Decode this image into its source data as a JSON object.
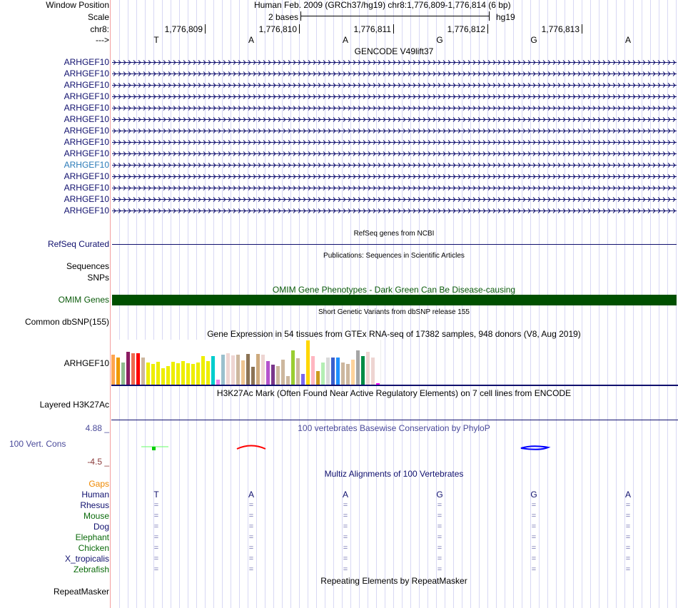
{
  "labels": {
    "window_position": "Window Position",
    "scale": "Scale",
    "chr": "chr8:",
    "strand": "--->",
    "refseq": "RefSeq Curated",
    "sequences": "Sequences",
    "snps": "SNPs",
    "omim": "OMIM Genes",
    "dbsnp": "Common dbSNP(155)",
    "gtex_gene": "ARHGEF10",
    "h3k27ac": "Layered H3K27Ac",
    "cons": "100 Vert. Cons",
    "cons_max": "4.88 _",
    "cons_min": "-4.5 _",
    "gaps": "Gaps",
    "repeatmasker": "RepeatMasker"
  },
  "header": {
    "position": "Human Feb. 2009 (GRCh37/hg19)   chr8:1,776,809-1,776,814 (6 bp)",
    "scale_text": "2 bases",
    "assembly": "hg19"
  },
  "ruler": [
    "1,776,809",
    "1,776,810",
    "1,776,811",
    "1,776,812",
    "1,776,813"
  ],
  "bases": [
    "T",
    "A",
    "A",
    "G",
    "G",
    "A"
  ],
  "titles": {
    "gencode": "GENCODE V49lift37",
    "refseq": "RefSeq genes from NCBI",
    "pubs": "Publications: Sequences in Scientific Articles",
    "omim": "OMIM Gene Phenotypes - Dark Green Can Be Disease-causing",
    "dbsnp": "Short Genetic Variants from dbSNP release 155",
    "gtex": "Gene Expression in 54 tissues from GTEx RNA-seq of 17382 samples, 948 donors (V8, Aug 2019)",
    "h3k27ac": "H3K27Ac Mark (Often Found Near Active Regulatory Elements) on 7 cell lines from ENCODE",
    "phylop": "100 vertebrates Basewise Conservation by PhyloP",
    "multiz": "Multiz Alignments of 100 Vertebrates",
    "rmsk": "Repeating Elements by RepeatMasker"
  },
  "gencode_rows": [
    "ARHGEF10",
    "ARHGEF10",
    "ARHGEF10",
    "ARHGEF10",
    "ARHGEF10",
    "ARHGEF10",
    "ARHGEF10",
    "ARHGEF10",
    "ARHGEF10",
    "ARHGEF10",
    "ARHGEF10",
    "ARHGEF10",
    "ARHGEF10",
    "ARHGEF10"
  ],
  "gencode_highlight_index": 9,
  "species": [
    {
      "name": "Human",
      "color": "#10106e"
    },
    {
      "name": "Rhesus",
      "color": "#10106e"
    },
    {
      "name": "Mouse",
      "color": "#0a6a0a"
    },
    {
      "name": "Dog",
      "color": "#10106e"
    },
    {
      "name": "Elephant",
      "color": "#0a6a0a"
    },
    {
      "name": "Chicken",
      "color": "#0a6a0a"
    },
    {
      "name": "X_tropicalis",
      "color": "#10106e"
    },
    {
      "name": "Zebrafish",
      "color": "#0a6a0a"
    }
  ],
  "align_symbol": "=",
  "gtex": {
    "values": [
      130,
      118,
      94,
      142,
      136,
      136,
      118,
      94,
      88,
      97,
      70,
      79,
      97,
      91,
      100,
      91,
      88,
      94,
      124,
      100,
      124,
      22,
      130,
      136,
      127,
      130,
      103,
      133,
      76,
      133,
      130,
      100,
      85,
      79,
      106,
      37,
      148,
      112,
      46,
      190,
      124,
      58,
      94,
      115,
      115,
      115,
      94,
      88,
      106,
      148,
      124,
      142,
      115,
      7
    ],
    "colors": [
      "#ffa54f",
      "#ee9a00",
      "#8fbc8f",
      "#8b1c62",
      "#ee6a50",
      "#ff0000",
      "#cdb79e",
      "#eeee00",
      "#eeee00",
      "#eeee00",
      "#eeee00",
      "#eeee00",
      "#eeee00",
      "#eeee00",
      "#eeee00",
      "#eeee00",
      "#eeee00",
      "#eeee00",
      "#eeee00",
      "#eeee00",
      "#00cdcd",
      "#ee82ee",
      "#9ac0cd",
      "#eed5d2",
      "#eed5d2",
      "#cdb79e",
      "#eec591",
      "#8b7355",
      "#8b7355",
      "#cdaa7d",
      "#eed5d2",
      "#b452cd",
      "#7a378b",
      "#cdb79e",
      "#cdb79e",
      "#cdb79e",
      "#9acd32",
      "#cdb79e",
      "#7b68ee",
      "#ffd700",
      "#ffb6c1",
      "#cd9b1d",
      "#b4eeb4",
      "#d9d9d9",
      "#3a5fcd",
      "#1e90ff",
      "#cdb79e",
      "#cdb79e",
      "#ffd39b",
      "#a6a6a6",
      "#008b45",
      "#eed5d2",
      "#eed5d2",
      "#ff00ff"
    ],
    "max": 190
  },
  "colors": {
    "navy": "#10106e",
    "omim_bar": "#005000",
    "cons_title": "#4a4a9a"
  }
}
